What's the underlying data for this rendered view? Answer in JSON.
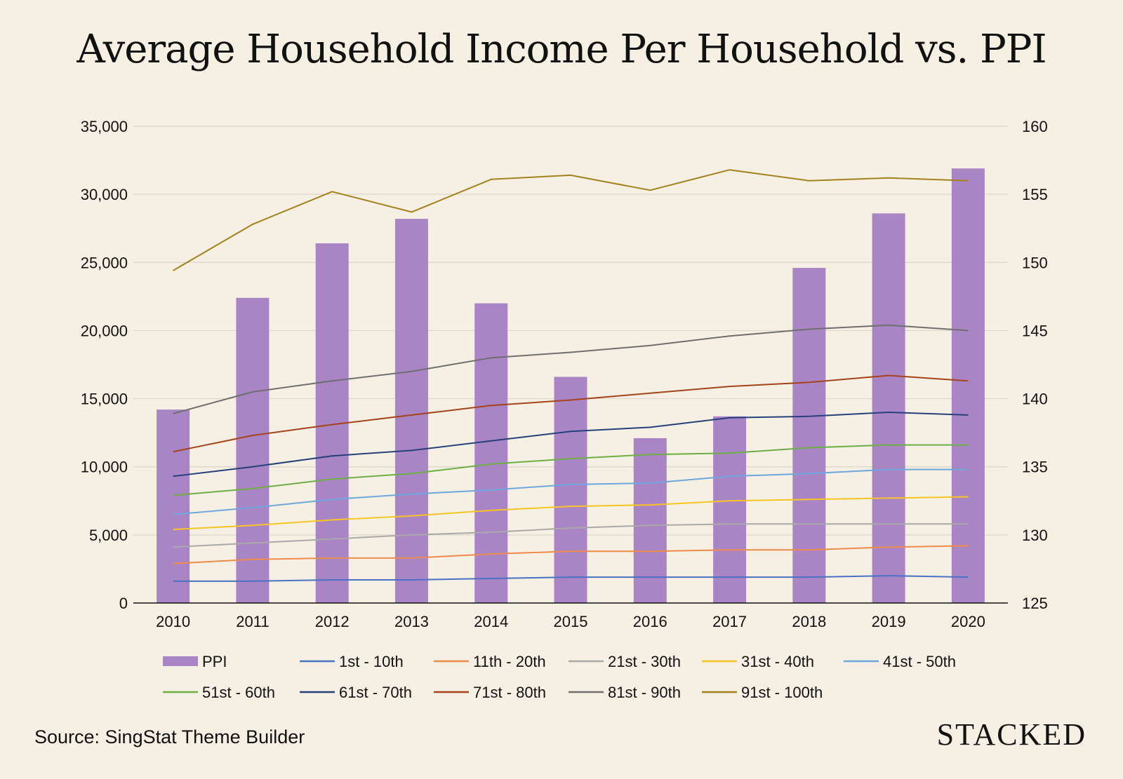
{
  "chart_data": {
    "type": "bar",
    "title": "Average Household Income Per Household vs. PPI",
    "categories": [
      "2010",
      "2011",
      "2012",
      "2013",
      "2014",
      "2015",
      "2016",
      "2017",
      "2018",
      "2019",
      "2020"
    ],
    "y_left": {
      "ticks": [
        0,
        5000,
        10000,
        15000,
        20000,
        25000,
        30000,
        35000
      ],
      "tick_labels": [
        "0",
        "5,000",
        "10,000",
        "15,000",
        "20,000",
        "25,000",
        "30,000",
        "35,000"
      ],
      "lim": [
        0,
        35000
      ]
    },
    "y_right": {
      "ticks": [
        125,
        130,
        135,
        140,
        145,
        150,
        155,
        160
      ],
      "tick_labels": [
        "125",
        "130",
        "135",
        "140",
        "145",
        "150",
        "155",
        "160"
      ],
      "lim": [
        125,
        160
      ]
    },
    "grid": true,
    "bar_series": {
      "name": "PPI",
      "axis": "right",
      "color": "#a985c5",
      "values": [
        139.2,
        147.4,
        151.4,
        153.2,
        147.0,
        141.6,
        137.1,
        138.7,
        149.6,
        153.6,
        156.9
      ]
    },
    "line_series": [
      {
        "name": "1st - 10th",
        "color": "#4a72c4",
        "values": [
          1600,
          1600,
          1700,
          1700,
          1800,
          1900,
          1900,
          1900,
          1900,
          2000,
          1900
        ]
      },
      {
        "name": "11th - 20th",
        "color": "#ee8a4a",
        "values": [
          2900,
          3200,
          3300,
          3300,
          3600,
          3800,
          3800,
          3900,
          3900,
          4100,
          4200
        ]
      },
      {
        "name": "21st - 30th",
        "color": "#a9a9a9",
        "values": [
          4100,
          4400,
          4700,
          5000,
          5200,
          5500,
          5700,
          5800,
          5800,
          5800,
          5800
        ]
      },
      {
        "name": "31st - 40th",
        "color": "#f7c325",
        "values": [
          5400,
          5700,
          6100,
          6400,
          6800,
          7100,
          7200,
          7500,
          7600,
          7700,
          7800
        ]
      },
      {
        "name": "41st - 50th",
        "color": "#6ea6de",
        "values": [
          6500,
          7000,
          7600,
          8000,
          8300,
          8700,
          8800,
          9300,
          9500,
          9800,
          9800
        ]
      },
      {
        "name": "51st - 60th",
        "color": "#6dae45",
        "values": [
          7900,
          8400,
          9100,
          9500,
          10200,
          10600,
          10900,
          11000,
          11400,
          11600,
          11600
        ]
      },
      {
        "name": "61st - 70th",
        "color": "#26407c",
        "values": [
          9300,
          10000,
          10800,
          11200,
          11900,
          12600,
          12900,
          13600,
          13700,
          14000,
          13800
        ]
      },
      {
        "name": "71st - 80th",
        "color": "#a7431a",
        "values": [
          11100,
          12300,
          13100,
          13800,
          14500,
          14900,
          15400,
          15900,
          16200,
          16700,
          16300
        ]
      },
      {
        "name": "81st - 90th",
        "color": "#6e6e6e",
        "values": [
          13900,
          15500,
          16300,
          17000,
          18000,
          18400,
          18900,
          19600,
          20100,
          20400,
          20000
        ]
      },
      {
        "name": "91st - 100th",
        "color": "#a5811d",
        "values": [
          24400,
          27800,
          30200,
          28700,
          31100,
          31400,
          30300,
          31800,
          31000,
          31200,
          31000
        ]
      }
    ],
    "legend": "bottom"
  },
  "source": "Source: SingStat Theme Builder",
  "brand": "STACKED"
}
